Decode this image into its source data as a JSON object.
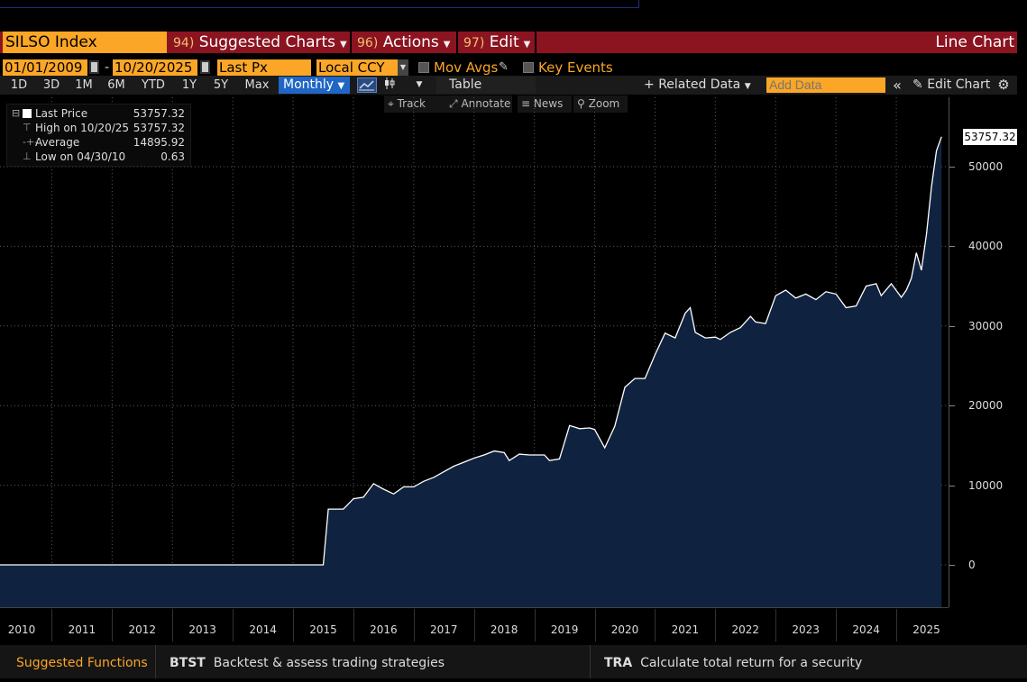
{
  "title_bar": {
    "ticker": "SILSO Index",
    "menus": [
      {
        "num": "94)",
        "label": "Suggested Charts"
      },
      {
        "num": "96)",
        "label": "Actions"
      },
      {
        "num": "97)",
        "label": "Edit"
      }
    ],
    "chart_type": "Line Chart"
  },
  "controls": {
    "start_date": "01/01/2009",
    "end_date": "10/20/2025",
    "date_sep": "-",
    "field": "Last Px",
    "currency": "Local CCY",
    "mov_avgs": "Mov Avgs",
    "key_events": "Key Events"
  },
  "toolbar": {
    "ranges": [
      "1D",
      "3D",
      "1M",
      "6M",
      "YTD",
      "1Y",
      "5Y",
      "Max"
    ],
    "periodicity": "Monthly",
    "table": "Table",
    "related_data": "Related Data",
    "add_data_placeholder": "Add Data",
    "edit_chart": "Edit Chart"
  },
  "subtools": {
    "track": "Track",
    "annotate": "Annotate",
    "news": "News",
    "zoom": "Zoom"
  },
  "legend": {
    "rows": [
      {
        "label": "Last Price",
        "value": "53757.32"
      },
      {
        "label": "High on 10/20/25",
        "value": "53757.32"
      },
      {
        "label": "Average",
        "value": "14895.92"
      },
      {
        "label": "Low on 04/30/10",
        "value": "0.63"
      }
    ]
  },
  "last_value_label": "53757.32",
  "footer": {
    "suggested": "Suggested Functions",
    "items": [
      {
        "code": "BTST",
        "desc": "Backtest & assess trading strategies"
      },
      {
        "code": "TRA",
        "desc": "Calculate total return for a security"
      }
    ]
  },
  "colors": {
    "accent_orange": "#fba626",
    "title_red": "#8b1420",
    "area_fill": "#0f2340",
    "line": "#ffffff",
    "selected_blue": "#1f66c6"
  },
  "chart_data": {
    "type": "area",
    "title": "",
    "xlabel": "",
    "ylabel": "",
    "x_tick_labels": [
      "2010",
      "2011",
      "2012",
      "2013",
      "2014",
      "2015",
      "2016",
      "2017",
      "2018",
      "2019",
      "2020",
      "2021",
      "2022",
      "2023",
      "2024",
      "2025"
    ],
    "y_tick_labels": [
      "0",
      "10000",
      "20000",
      "30000",
      "40000",
      "50000"
    ],
    "ylim": [
      -5000,
      58000
    ],
    "grid": true,
    "series": [
      {
        "name": "Last Price",
        "points": [
          [
            "2009-01",
            0
          ],
          [
            "2010-01",
            0
          ],
          [
            "2011-01",
            0
          ],
          [
            "2012-01",
            0
          ],
          [
            "2013-01",
            0
          ],
          [
            "2014-01",
            0
          ],
          [
            "2015-01",
            0
          ],
          [
            "2015-07",
            0
          ],
          [
            "2015-08",
            7000
          ],
          [
            "2015-11",
            7000
          ],
          [
            "2016-01",
            8300
          ],
          [
            "2016-03",
            8500
          ],
          [
            "2016-05",
            10200
          ],
          [
            "2016-07",
            9500
          ],
          [
            "2016-09",
            8900
          ],
          [
            "2016-11",
            9800
          ],
          [
            "2017-01",
            9800
          ],
          [
            "2017-03",
            10500
          ],
          [
            "2017-05",
            11000
          ],
          [
            "2017-07",
            11700
          ],
          [
            "2017-09",
            12400
          ],
          [
            "2017-11",
            12900
          ],
          [
            "2018-01",
            13400
          ],
          [
            "2018-03",
            13800
          ],
          [
            "2018-05",
            14300
          ],
          [
            "2018-07",
            14100
          ],
          [
            "2018-08",
            13100
          ],
          [
            "2018-10",
            13900
          ],
          [
            "2018-12",
            13800
          ],
          [
            "2019-03",
            13800
          ],
          [
            "2019-04",
            13100
          ],
          [
            "2019-06",
            13300
          ],
          [
            "2019-08",
            17500
          ],
          [
            "2019-10",
            17100
          ],
          [
            "2019-12",
            17200
          ],
          [
            "2020-01",
            17000
          ],
          [
            "2020-03",
            14700
          ],
          [
            "2020-05",
            17400
          ],
          [
            "2020-07",
            22300
          ],
          [
            "2020-09",
            23400
          ],
          [
            "2020-11",
            23400
          ],
          [
            "2021-01",
            26400
          ],
          [
            "2021-03",
            29100
          ],
          [
            "2021-05",
            28500
          ],
          [
            "2021-07",
            31600
          ],
          [
            "2021-08",
            32300
          ],
          [
            "2021-09",
            29200
          ],
          [
            "2021-11",
            28500
          ],
          [
            "2022-01",
            28600
          ],
          [
            "2022-02",
            28300
          ],
          [
            "2022-04",
            29200
          ],
          [
            "2022-06",
            29800
          ],
          [
            "2022-08",
            31200
          ],
          [
            "2022-09",
            30500
          ],
          [
            "2022-11",
            30300
          ],
          [
            "2023-01",
            33800
          ],
          [
            "2023-03",
            34500
          ],
          [
            "2023-05",
            33500
          ],
          [
            "2023-07",
            34000
          ],
          [
            "2023-09",
            33300
          ],
          [
            "2023-11",
            34300
          ],
          [
            "2024-01",
            34000
          ],
          [
            "2024-03",
            32300
          ],
          [
            "2024-05",
            32500
          ],
          [
            "2024-07",
            35000
          ],
          [
            "2024-09",
            35300
          ],
          [
            "2024-10",
            33800
          ],
          [
            "2024-12",
            35300
          ],
          [
            "2025-02",
            33600
          ],
          [
            "2025-03",
            34500
          ],
          [
            "2025-04",
            36000
          ],
          [
            "2025-05",
            39200
          ],
          [
            "2025-06",
            37000
          ],
          [
            "2025-07",
            41500
          ],
          [
            "2025-08",
            47500
          ],
          [
            "2025-09",
            52000
          ],
          [
            "2025-10",
            53757.32
          ]
        ]
      }
    ]
  }
}
